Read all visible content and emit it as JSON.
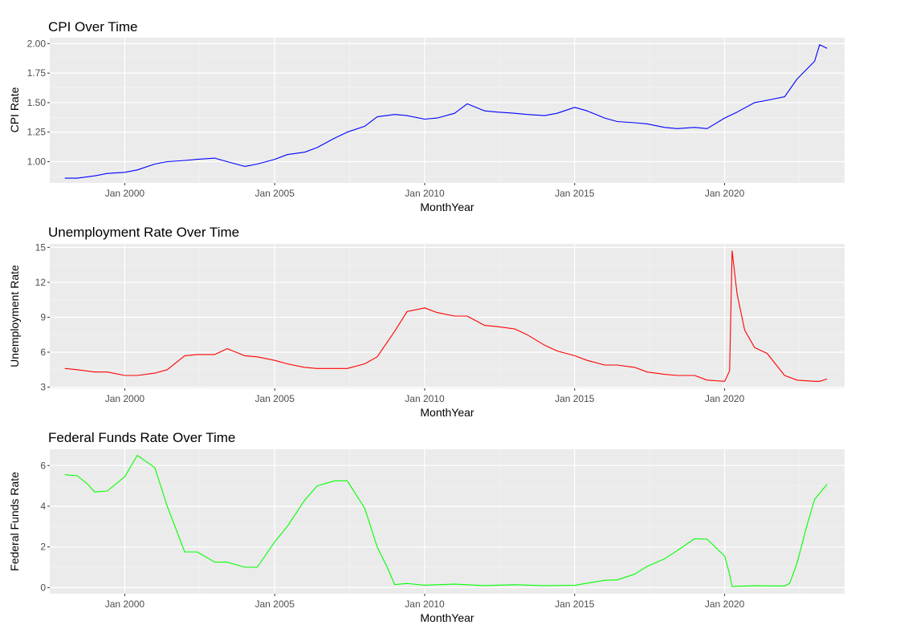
{
  "chart_data": [
    {
      "type": "line",
      "title": "CPI Over Time",
      "xlabel": "MonthYear",
      "ylabel": "CPI Rate",
      "color": "#0000ff",
      "x_ticks": [
        "Jan 2000",
        "Jan 2005",
        "Jan 2010",
        "Jan 2015",
        "Jan 2020"
      ],
      "y_ticks": [
        "1.00",
        "1.25",
        "1.50",
        "1.75",
        "2.00"
      ],
      "xlim": [
        "1997-07",
        "2024-01"
      ],
      "ylim": [
        0.82,
        2.05
      ],
      "grid": true,
      "series": [
        {
          "points": [
            [
              "1998-01",
              0.86
            ],
            [
              "1998-06",
              0.86
            ],
            [
              "1999-01",
              0.88
            ],
            [
              "1999-06",
              0.9
            ],
            [
              "2000-01",
              0.91
            ],
            [
              "2000-06",
              0.93
            ],
            [
              "2001-01",
              0.98
            ],
            [
              "2001-06",
              1.0
            ],
            [
              "2002-01",
              1.01
            ],
            [
              "2002-06",
              1.02
            ],
            [
              "2003-01",
              1.03
            ],
            [
              "2003-06",
              1.0
            ],
            [
              "2004-01",
              0.96
            ],
            [
              "2004-06",
              0.98
            ],
            [
              "2005-01",
              1.02
            ],
            [
              "2005-06",
              1.06
            ],
            [
              "2006-01",
              1.08
            ],
            [
              "2006-06",
              1.12
            ],
            [
              "2007-01",
              1.2
            ],
            [
              "2007-06",
              1.25
            ],
            [
              "2008-01",
              1.3
            ],
            [
              "2008-06",
              1.38
            ],
            [
              "2009-01",
              1.4
            ],
            [
              "2009-06",
              1.39
            ],
            [
              "2010-01",
              1.36
            ],
            [
              "2010-06",
              1.37
            ],
            [
              "2011-01",
              1.41
            ],
            [
              "2011-06",
              1.49
            ],
            [
              "2012-01",
              1.43
            ],
            [
              "2012-06",
              1.42
            ],
            [
              "2013-01",
              1.41
            ],
            [
              "2013-06",
              1.4
            ],
            [
              "2014-01",
              1.39
            ],
            [
              "2014-06",
              1.41
            ],
            [
              "2015-01",
              1.46
            ],
            [
              "2015-06",
              1.43
            ],
            [
              "2016-01",
              1.37
            ],
            [
              "2016-06",
              1.34
            ],
            [
              "2017-01",
              1.33
            ],
            [
              "2017-06",
              1.32
            ],
            [
              "2018-01",
              1.29
            ],
            [
              "2018-06",
              1.28
            ],
            [
              "2019-01",
              1.29
            ],
            [
              "2019-06",
              1.28
            ],
            [
              "2020-01",
              1.37
            ],
            [
              "2020-06",
              1.42
            ],
            [
              "2021-01",
              1.5
            ],
            [
              "2021-06",
              1.52
            ],
            [
              "2022-01",
              1.55
            ],
            [
              "2022-06",
              1.7
            ],
            [
              "2023-01",
              1.85
            ],
            [
              "2023-03",
              1.99
            ],
            [
              "2023-06",
              1.96
            ]
          ]
        }
      ]
    },
    {
      "type": "line",
      "title": "Unemployment Rate Over Time",
      "xlabel": "MonthYear",
      "ylabel": "Unemployment Rate",
      "color": "#ff0000",
      "x_ticks": [
        "Jan 2000",
        "Jan 2005",
        "Jan 2010",
        "Jan 2015",
        "Jan 2020"
      ],
      "y_ticks": [
        "3",
        "6",
        "9",
        "12",
        "15"
      ],
      "xlim": [
        "1997-07",
        "2024-01"
      ],
      "ylim": [
        2.9,
        15.3
      ],
      "grid": true,
      "series": [
        {
          "points": [
            [
              "1998-01",
              4.6
            ],
            [
              "1998-06",
              4.5
            ],
            [
              "1999-01",
              4.3
            ],
            [
              "1999-06",
              4.3
            ],
            [
              "2000-01",
              4.0
            ],
            [
              "2000-06",
              4.0
            ],
            [
              "2001-01",
              4.2
            ],
            [
              "2001-06",
              4.5
            ],
            [
              "2002-01",
              5.7
            ],
            [
              "2002-06",
              5.8
            ],
            [
              "2003-01",
              5.8
            ],
            [
              "2003-06",
              6.3
            ],
            [
              "2004-01",
              5.7
            ],
            [
              "2004-06",
              5.6
            ],
            [
              "2005-01",
              5.3
            ],
            [
              "2005-06",
              5.0
            ],
            [
              "2006-01",
              4.7
            ],
            [
              "2006-06",
              4.6
            ],
            [
              "2007-01",
              4.6
            ],
            [
              "2007-06",
              4.6
            ],
            [
              "2008-01",
              5.0
            ],
            [
              "2008-06",
              5.6
            ],
            [
              "2009-01",
              7.8
            ],
            [
              "2009-06",
              9.5
            ],
            [
              "2010-01",
              9.8
            ],
            [
              "2010-06",
              9.4
            ],
            [
              "2011-01",
              9.1
            ],
            [
              "2011-06",
              9.1
            ],
            [
              "2012-01",
              8.3
            ],
            [
              "2012-06",
              8.2
            ],
            [
              "2013-01",
              8.0
            ],
            [
              "2013-06",
              7.5
            ],
            [
              "2014-01",
              6.6
            ],
            [
              "2014-06",
              6.1
            ],
            [
              "2015-01",
              5.7
            ],
            [
              "2015-06",
              5.3
            ],
            [
              "2016-01",
              4.9
            ],
            [
              "2016-06",
              4.9
            ],
            [
              "2017-01",
              4.7
            ],
            [
              "2017-06",
              4.3
            ],
            [
              "2018-01",
              4.1
            ],
            [
              "2018-06",
              4.0
            ],
            [
              "2019-01",
              4.0
            ],
            [
              "2019-06",
              3.6
            ],
            [
              "2020-01",
              3.5
            ],
            [
              "2020-03",
              4.4
            ],
            [
              "2020-04",
              14.7
            ],
            [
              "2020-06",
              11.0
            ],
            [
              "2020-09",
              7.9
            ],
            [
              "2021-01",
              6.4
            ],
            [
              "2021-06",
              5.9
            ],
            [
              "2022-01",
              4.0
            ],
            [
              "2022-06",
              3.6
            ],
            [
              "2023-01",
              3.5
            ],
            [
              "2023-03",
              3.5
            ],
            [
              "2023-06",
              3.7
            ]
          ]
        }
      ]
    },
    {
      "type": "line",
      "title": "Federal Funds Rate Over Time",
      "xlabel": "MonthYear",
      "ylabel": "Federal Funds Rate",
      "color": "#00ff00",
      "x_ticks": [
        "Jan 2000",
        "Jan 2005",
        "Jan 2010",
        "Jan 2015",
        "Jan 2020"
      ],
      "y_ticks": [
        "0",
        "2",
        "4",
        "6"
      ],
      "xlim": [
        "1997-07",
        "2024-01"
      ],
      "ylim": [
        -0.3,
        6.8
      ],
      "grid": true,
      "series": [
        {
          "points": [
            [
              "1998-01",
              5.55
            ],
            [
              "1998-06",
              5.5
            ],
            [
              "1998-10",
              5.1
            ],
            [
              "1999-01",
              4.7
            ],
            [
              "1999-06",
              4.75
            ],
            [
              "2000-01",
              5.45
            ],
            [
              "2000-06",
              6.5
            ],
            [
              "2001-01",
              5.9
            ],
            [
              "2001-06",
              4.0
            ],
            [
              "2002-01",
              1.75
            ],
            [
              "2002-06",
              1.75
            ],
            [
              "2003-01",
              1.25
            ],
            [
              "2003-06",
              1.25
            ],
            [
              "2004-01",
              1.0
            ],
            [
              "2004-06",
              1.0
            ],
            [
              "2005-01",
              2.25
            ],
            [
              "2005-06",
              3.0
            ],
            [
              "2006-01",
              4.3
            ],
            [
              "2006-06",
              5.0
            ],
            [
              "2007-01",
              5.25
            ],
            [
              "2007-06",
              5.25
            ],
            [
              "2008-01",
              3.9
            ],
            [
              "2008-06",
              2.0
            ],
            [
              "2008-10",
              1.0
            ],
            [
              "2009-01",
              0.15
            ],
            [
              "2009-06",
              0.2
            ],
            [
              "2010-01",
              0.12
            ],
            [
              "2011-01",
              0.17
            ],
            [
              "2012-01",
              0.1
            ],
            [
              "2013-01",
              0.14
            ],
            [
              "2014-01",
              0.09
            ],
            [
              "2015-01",
              0.11
            ],
            [
              "2016-01",
              0.36
            ],
            [
              "2016-06",
              0.38
            ],
            [
              "2017-01",
              0.66
            ],
            [
              "2017-06",
              1.04
            ],
            [
              "2018-01",
              1.41
            ],
            [
              "2018-06",
              1.82
            ],
            [
              "2019-01",
              2.4
            ],
            [
              "2019-06",
              2.38
            ],
            [
              "2020-01",
              1.55
            ],
            [
              "2020-03",
              0.65
            ],
            [
              "2020-04",
              0.05
            ],
            [
              "2021-01",
              0.09
            ],
            [
              "2022-01",
              0.08
            ],
            [
              "2022-03",
              0.2
            ],
            [
              "2022-06",
              1.21
            ],
            [
              "2022-10",
              3.08
            ],
            [
              "2023-01",
              4.33
            ],
            [
              "2023-06",
              5.08
            ]
          ]
        }
      ]
    }
  ]
}
